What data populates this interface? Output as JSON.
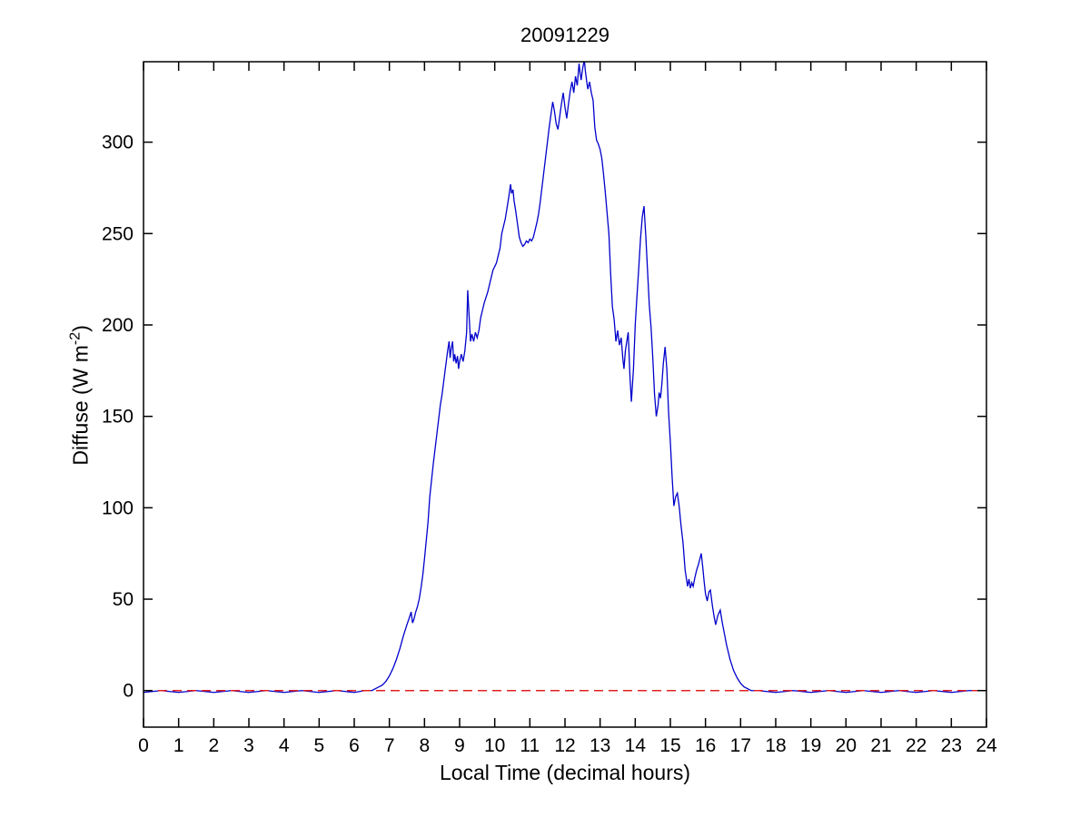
{
  "figure": {
    "title": "20091229",
    "xlabel": "Local Time (decimal hours)",
    "ylabel_prefix": "Diffuse (W m",
    "ylabel_sup": "-2",
    "ylabel_suffix": ")"
  },
  "colors": {
    "series_blue": "#0000cc",
    "reference_red": "#e02020",
    "axis": "#000000",
    "background": "#ffffff"
  },
  "chart_data": {
    "type": "line",
    "title": "20091229",
    "xlabel": "Local Time (decimal hours)",
    "ylabel": "Diffuse (W m^-2)",
    "xlim": [
      0,
      24
    ],
    "ylim": [
      -20,
      344
    ],
    "xticks": [
      0,
      1,
      2,
      3,
      4,
      5,
      6,
      7,
      8,
      9,
      10,
      11,
      12,
      13,
      14,
      15,
      16,
      17,
      18,
      19,
      20,
      21,
      22,
      23,
      24
    ],
    "yticks": [
      0,
      50,
      100,
      150,
      200,
      250,
      300
    ],
    "grid": false,
    "legend_position": "none",
    "series": [
      {
        "name": "diffuse",
        "color": "#0000cc",
        "style": "solid",
        "points": [
          [
            0,
            -1
          ],
          [
            0.5,
            0
          ],
          [
            1,
            -1
          ],
          [
            1.5,
            0
          ],
          [
            2,
            -1
          ],
          [
            2.5,
            0
          ],
          [
            3,
            -1
          ],
          [
            3.5,
            0
          ],
          [
            4,
            -1
          ],
          [
            4.5,
            0
          ],
          [
            5,
            -1
          ],
          [
            5.5,
            0
          ],
          [
            6,
            -1
          ],
          [
            6.3,
            0
          ],
          [
            6.5,
            0
          ],
          [
            6.6,
            1
          ],
          [
            6.7,
            2
          ],
          [
            6.8,
            3
          ],
          [
            6.9,
            5
          ],
          [
            7.0,
            8
          ],
          [
            7.1,
            12
          ],
          [
            7.2,
            17
          ],
          [
            7.3,
            23
          ],
          [
            7.4,
            30
          ],
          [
            7.5,
            36
          ],
          [
            7.57,
            40
          ],
          [
            7.62,
            43
          ],
          [
            7.66,
            37
          ],
          [
            7.7,
            39
          ],
          [
            7.75,
            43
          ],
          [
            7.8,
            46
          ],
          [
            7.85,
            50
          ],
          [
            7.9,
            56
          ],
          [
            7.95,
            63
          ],
          [
            8.0,
            72
          ],
          [
            8.05,
            82
          ],
          [
            8.1,
            92
          ],
          [
            8.15,
            106
          ],
          [
            8.2,
            115
          ],
          [
            8.25,
            124
          ],
          [
            8.3,
            132
          ],
          [
            8.35,
            140
          ],
          [
            8.4,
            148
          ],
          [
            8.45,
            156
          ],
          [
            8.5,
            162
          ],
          [
            8.54,
            168
          ],
          [
            8.58,
            174
          ],
          [
            8.62,
            180
          ],
          [
            8.66,
            186
          ],
          [
            8.7,
            191
          ],
          [
            8.73,
            182
          ],
          [
            8.76,
            187
          ],
          [
            8.8,
            191
          ],
          [
            8.83,
            180
          ],
          [
            8.86,
            184
          ],
          [
            8.9,
            179
          ],
          [
            8.94,
            183
          ],
          [
            8.97,
            176
          ],
          [
            9.0,
            180
          ],
          [
            9.05,
            184
          ],
          [
            9.1,
            180
          ],
          [
            9.15,
            186
          ],
          [
            9.2,
            196
          ],
          [
            9.23,
            219
          ],
          [
            9.27,
            205
          ],
          [
            9.31,
            191
          ],
          [
            9.35,
            195
          ],
          [
            9.4,
            191
          ],
          [
            9.45,
            196
          ],
          [
            9.5,
            193
          ],
          [
            9.55,
            197
          ],
          [
            9.6,
            204
          ],
          [
            9.65,
            208
          ],
          [
            9.7,
            212
          ],
          [
            9.75,
            215
          ],
          [
            9.8,
            218
          ],
          [
            9.85,
            222
          ],
          [
            9.9,
            226
          ],
          [
            9.95,
            230
          ],
          [
            10.0,
            232
          ],
          [
            10.05,
            234
          ],
          [
            10.1,
            238
          ],
          [
            10.15,
            242
          ],
          [
            10.2,
            250
          ],
          [
            10.25,
            254
          ],
          [
            10.3,
            258
          ],
          [
            10.35,
            264
          ],
          [
            10.4,
            270
          ],
          [
            10.45,
            277
          ],
          [
            10.48,
            272
          ],
          [
            10.52,
            274
          ],
          [
            10.55,
            268
          ],
          [
            10.6,
            262
          ],
          [
            10.65,
            255
          ],
          [
            10.7,
            248
          ],
          [
            10.75,
            245
          ],
          [
            10.8,
            243
          ],
          [
            10.85,
            244
          ],
          [
            10.9,
            246
          ],
          [
            10.95,
            245
          ],
          [
            11.0,
            247
          ],
          [
            11.05,
            246
          ],
          [
            11.1,
            248
          ],
          [
            11.15,
            252
          ],
          [
            11.2,
            256
          ],
          [
            11.25,
            261
          ],
          [
            11.3,
            268
          ],
          [
            11.35,
            276
          ],
          [
            11.4,
            284
          ],
          [
            11.45,
            292
          ],
          [
            11.5,
            300
          ],
          [
            11.55,
            308
          ],
          [
            11.6,
            315
          ],
          [
            11.65,
            322
          ],
          [
            11.7,
            317
          ],
          [
            11.75,
            310
          ],
          [
            11.8,
            307
          ],
          [
            11.85,
            314
          ],
          [
            11.9,
            321
          ],
          [
            11.95,
            327
          ],
          [
            12.0,
            319
          ],
          [
            12.05,
            313
          ],
          [
            12.1,
            321
          ],
          [
            12.15,
            328
          ],
          [
            12.2,
            333
          ],
          [
            12.25,
            327
          ],
          [
            12.3,
            336
          ],
          [
            12.35,
            331
          ],
          [
            12.4,
            343
          ],
          [
            12.43,
            338
          ],
          [
            12.46,
            334
          ],
          [
            12.5,
            340
          ],
          [
            12.55,
            345
          ],
          [
            12.58,
            339
          ],
          [
            12.62,
            333
          ],
          [
            12.65,
            329
          ],
          [
            12.7,
            333
          ],
          [
            12.75,
            327
          ],
          [
            12.8,
            323
          ],
          [
            12.85,
            308
          ],
          [
            12.9,
            301
          ],
          [
            12.95,
            299
          ],
          [
            13.0,
            296
          ],
          [
            13.05,
            291
          ],
          [
            13.1,
            282
          ],
          [
            13.15,
            272
          ],
          [
            13.2,
            261
          ],
          [
            13.25,
            250
          ],
          [
            13.3,
            228
          ],
          [
            13.35,
            210
          ],
          [
            13.4,
            203
          ],
          [
            13.45,
            191
          ],
          [
            13.5,
            197
          ],
          [
            13.55,
            189
          ],
          [
            13.6,
            193
          ],
          [
            13.65,
            181
          ],
          [
            13.68,
            176
          ],
          [
            13.72,
            186
          ],
          [
            13.76,
            191
          ],
          [
            13.8,
            196
          ],
          [
            13.85,
            172
          ],
          [
            13.89,
            158
          ],
          [
            13.95,
            176
          ],
          [
            14.0,
            200
          ],
          [
            14.05,
            216
          ],
          [
            14.1,
            231
          ],
          [
            14.15,
            247
          ],
          [
            14.2,
            259
          ],
          [
            14.25,
            265
          ],
          [
            14.3,
            249
          ],
          [
            14.35,
            230
          ],
          [
            14.4,
            211
          ],
          [
            14.45,
            199
          ],
          [
            14.5,
            182
          ],
          [
            14.55,
            162
          ],
          [
            14.6,
            150
          ],
          [
            14.65,
            156
          ],
          [
            14.68,
            163
          ],
          [
            14.72,
            160
          ],
          [
            14.76,
            168
          ],
          [
            14.8,
            179
          ],
          [
            14.85,
            188
          ],
          [
            14.9,
            176
          ],
          [
            14.95,
            152
          ],
          [
            15.0,
            136
          ],
          [
            15.05,
            117
          ],
          [
            15.1,
            101
          ],
          [
            15.15,
            106
          ],
          [
            15.2,
            108
          ],
          [
            15.25,
            101
          ],
          [
            15.3,
            91
          ],
          [
            15.36,
            81
          ],
          [
            15.42,
            66
          ],
          [
            15.49,
            57
          ],
          [
            15.53,
            61
          ],
          [
            15.57,
            56
          ],
          [
            15.61,
            59
          ],
          [
            15.65,
            57
          ],
          [
            15.7,
            62
          ],
          [
            15.75,
            66
          ],
          [
            15.8,
            69
          ],
          [
            15.88,
            75
          ],
          [
            15.92,
            68
          ],
          [
            15.96,
            60
          ],
          [
            16.0,
            53
          ],
          [
            16.05,
            49
          ],
          [
            16.1,
            54
          ],
          [
            16.14,
            55
          ],
          [
            16.2,
            46
          ],
          [
            16.25,
            40
          ],
          [
            16.29,
            36
          ],
          [
            16.35,
            41
          ],
          [
            16.42,
            44
          ],
          [
            16.48,
            37
          ],
          [
            16.55,
            30
          ],
          [
            16.6,
            25
          ],
          [
            16.7,
            17
          ],
          [
            16.8,
            11
          ],
          [
            16.9,
            7
          ],
          [
            17.0,
            4
          ],
          [
            17.1,
            2
          ],
          [
            17.2,
            1
          ],
          [
            17.3,
            0
          ],
          [
            17.5,
            0
          ],
          [
            18,
            -1
          ],
          [
            18.5,
            0
          ],
          [
            19,
            -1
          ],
          [
            19.5,
            0
          ],
          [
            20,
            -1
          ],
          [
            20.5,
            0
          ],
          [
            21,
            -1
          ],
          [
            21.5,
            0
          ],
          [
            22,
            -1
          ],
          [
            22.5,
            0
          ],
          [
            23,
            -1
          ],
          [
            23.5,
            0
          ],
          [
            24,
            0
          ]
        ]
      },
      {
        "name": "zero-reference",
        "color": "#e02020",
        "style": "dashed",
        "points": [
          [
            0,
            0
          ],
          [
            24,
            0
          ]
        ]
      }
    ]
  }
}
